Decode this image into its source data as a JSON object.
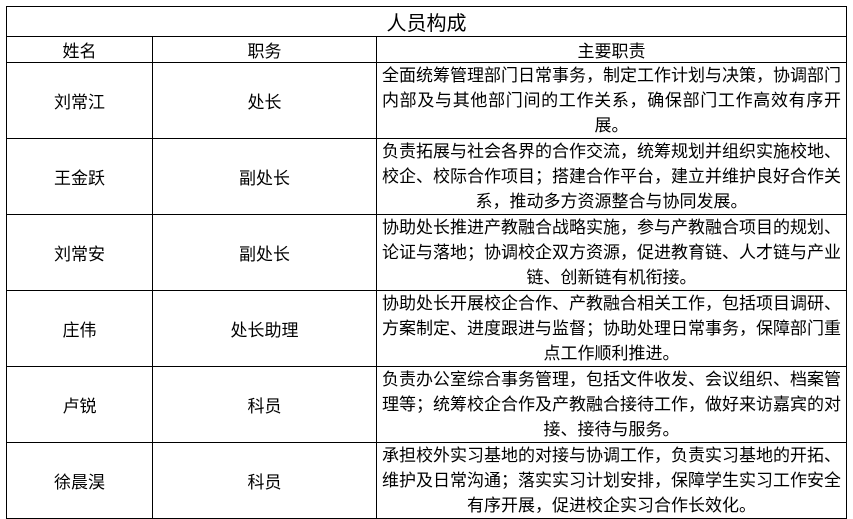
{
  "header": {
    "title": "人员构成"
  },
  "table": {
    "columns": [
      "姓名",
      "职务",
      "主要职责"
    ],
    "rows": [
      [
        "刘常江",
        "处长",
        "全面统筹管理部门日常事务，制定工作计划与决策，协调部门内部及与其他部门间的工作关系，确保部门工作高效有序开展。"
      ],
      [
        "王金跃",
        "副处长",
        "负责拓展与社会各界的合作交流，统筹规划并组织实施校地、校企、校际合作项目；搭建合作平台，建立并维护良好合作关系，推动多方资源整合与协同发展。"
      ],
      [
        "刘常安",
        "副处长",
        "协助处长推进产教融合战略实施，参与产教融合项目的规划、论证与落地；协调校企双方资源，促进教育链、人才链与产业链、创新链有机衔接。"
      ],
      [
        "庄伟",
        "处长助理",
        "协助处长开展校企合作、产教融合相关工作，包括项目调研、方案制定、进度跟进与监督；协助处理日常事务，保障部门重点工作顺利推进。"
      ],
      [
        "卢锐",
        "科员",
        "负责办公室综合事务管理，包括文件收发、会议组织、档案管理等；统筹校企合作及产教融合接待工作，做好来访嘉宾的对接、接待与服务。"
      ],
      [
        "徐晨淏",
        "科员",
        "承担校外实习基地的对接与协调工作，负责实习基地的开拓、维护及日常沟通；落实实习计划安排，保障学生实习工作安全有序开展，促进校企实习合作长效化。"
      ]
    ]
  }
}
